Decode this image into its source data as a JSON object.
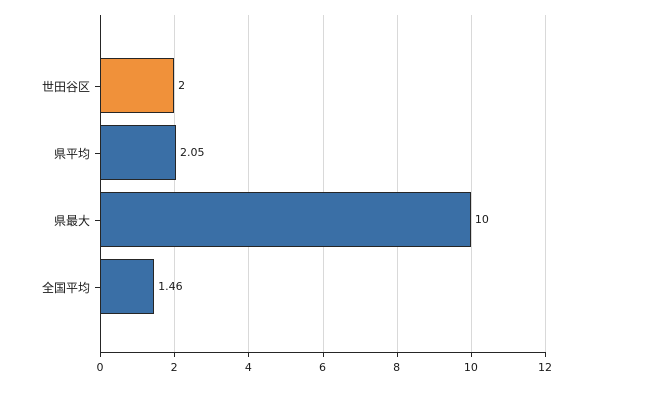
{
  "chart_data": {
    "type": "bar",
    "orientation": "horizontal",
    "title": "",
    "xlabel": "",
    "ylabel": "",
    "categories": [
      "世田谷区",
      "県平均",
      "県最大",
      "全国平均"
    ],
    "values": [
      2,
      2.05,
      10,
      1.46
    ],
    "value_labels": [
      "2",
      "2.05",
      "10",
      "1.46"
    ],
    "bar_colors": [
      "#F0913A",
      "#3A6FA6",
      "#3A6FA6",
      "#3A6FA6"
    ],
    "xlim": [
      0,
      12
    ],
    "xticks": [
      0,
      2,
      4,
      6,
      8,
      10,
      12
    ],
    "grid": true,
    "legend": "none",
    "style_colors": {
      "grid": "#d9d9d9",
      "axis": "#262626",
      "text": "#1a1a1a",
      "bar_border": "#262626",
      "background": "#ffffff"
    }
  }
}
